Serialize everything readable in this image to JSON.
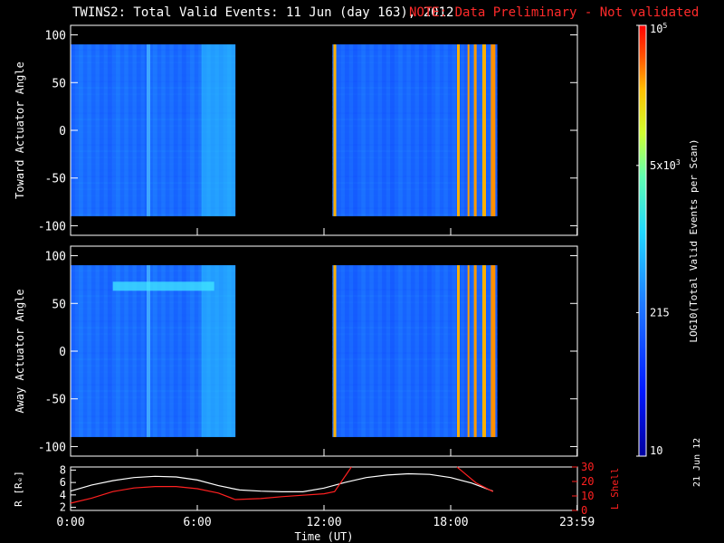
{
  "title": "TWINS2: Total Valid Events: 11 Jun (day 163), 2012",
  "note": "NOTE: Data Preliminary - Not validated",
  "date_stamp": "21 Jun 12",
  "colors": {
    "axes": "#ffffff",
    "note": "#ff2a2a",
    "background": "#000000",
    "lshell": "#ff2020",
    "radius": "#ffffff"
  },
  "chart_data": [
    {
      "type": "heatmap",
      "ylabel": "Toward Actuator Angle",
      "ylim": [
        -110,
        110
      ],
      "yticks": [
        100,
        50,
        0,
        -50,
        -100
      ],
      "xlim": [
        0,
        24
      ],
      "data_blocks": [
        {
          "x_start": 0,
          "x_end": 7.8,
          "y_start": -90,
          "y_end": 90,
          "level": 200
        },
        {
          "x_start": 12.4,
          "x_end": 20.2,
          "y_start": -90,
          "y_end": 90,
          "level": 180
        }
      ]
    },
    {
      "type": "heatmap",
      "ylabel": "Away Actuator Angle",
      "ylim": [
        -110,
        110
      ],
      "yticks": [
        100,
        50,
        0,
        -50,
        -100
      ],
      "xlim": [
        0,
        24
      ],
      "data_blocks": [
        {
          "x_start": 0,
          "x_end": 7.8,
          "y_start": -90,
          "y_end": 90,
          "level": 200
        },
        {
          "x_start": 12.4,
          "x_end": 20.2,
          "y_start": -90,
          "y_end": 90,
          "level": 180
        }
      ]
    },
    {
      "type": "line",
      "ylabel_left": "R [Rₑ]",
      "ylabel_right": "L Shell",
      "xlabel": "Time (UT)",
      "xlim": [
        0,
        24
      ],
      "xticks": [
        "0:00",
        "6:00",
        "12:00",
        "18:00",
        "23:59"
      ],
      "ylim_left": [
        1.5,
        8.5
      ],
      "yticks_left": [
        2,
        4,
        6,
        8
      ],
      "ylim_right": [
        0,
        30
      ],
      "yticks_right": [
        0,
        10,
        20,
        30
      ],
      "series": [
        {
          "axis": "left",
          "x": [
            0,
            1,
            2,
            3,
            4,
            5,
            6,
            7,
            8,
            9,
            10,
            11,
            12,
            13,
            14,
            15,
            16,
            17,
            18,
            19,
            20
          ],
          "values": [
            4.6,
            5.6,
            6.3,
            6.8,
            7.0,
            6.9,
            6.4,
            5.5,
            4.8,
            4.6,
            4.5,
            4.5,
            5.1,
            6.0,
            6.8,
            7.2,
            7.4,
            7.3,
            6.8,
            5.9,
            4.6
          ]
        },
        {
          "axis": "right",
          "x": [
            0,
            1,
            2,
            3,
            4,
            5,
            6,
            7,
            7.8,
            9,
            10,
            11,
            12,
            12.5,
            13.3,
            18.3,
            19.2,
            20
          ],
          "values": [
            5,
            8.5,
            13,
            15.5,
            16.5,
            16.5,
            15,
            12,
            7.5,
            8.2,
            9.5,
            10.5,
            11.5,
            13,
            30,
            30,
            19,
            13
          ]
        }
      ]
    }
  ],
  "colorbar": {
    "label": "LOG10(Total Valid Events per Scan)",
    "ticks": [
      {
        "label": "10",
        "value": 10
      },
      {
        "label": "215",
        "value": 215
      },
      {
        "label": "5x10",
        "exp": "3",
        "value": 5000
      },
      {
        "label": "10",
        "exp": "5",
        "value": 100000
      }
    ],
    "range": [
      10,
      100000
    ]
  }
}
